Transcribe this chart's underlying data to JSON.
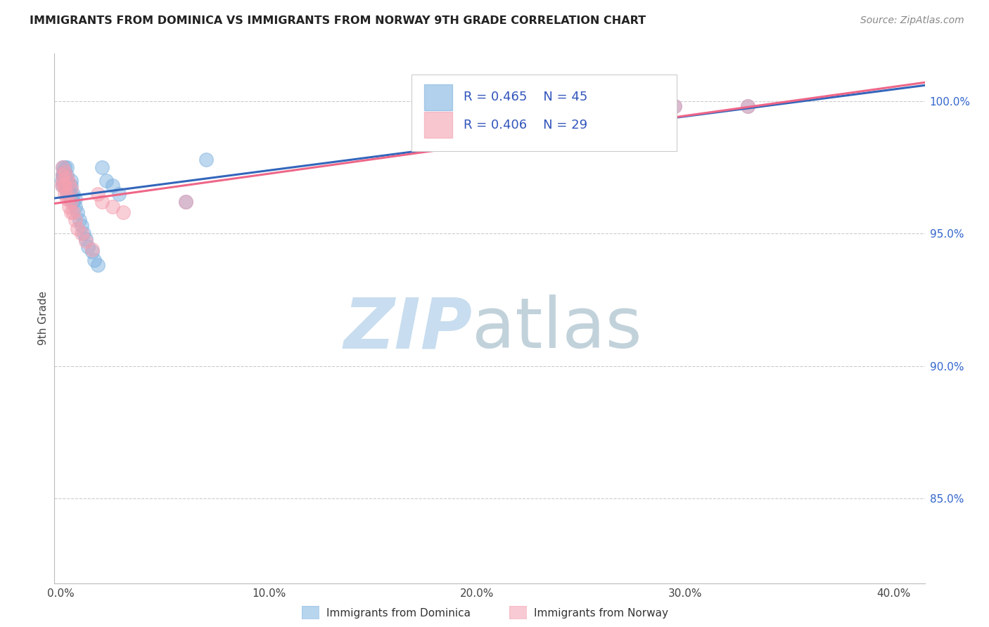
{
  "title": "IMMIGRANTS FROM DOMINICA VS IMMIGRANTS FROM NORWAY 9TH GRADE CORRELATION CHART",
  "source": "Source: ZipAtlas.com",
  "xlabel_tick_vals": [
    0.0,
    0.1,
    0.2,
    0.3,
    0.4
  ],
  "ylabel_tick_vals": [
    0.85,
    0.9,
    0.95,
    1.0
  ],
  "xlim": [
    -0.003,
    0.415
  ],
  "ylim": [
    0.818,
    1.018
  ],
  "ylabel": "9th Grade",
  "legend_dominica": "Immigrants from Dominica",
  "legend_norway": "Immigrants from Norway",
  "R_dominica": 0.465,
  "N_dominica": 45,
  "R_norway": 0.406,
  "N_norway": 29,
  "color_dominica": "#7FB3E0",
  "color_norway": "#F4A0B0",
  "trendline_dominica": "#3366BB",
  "trendline_norway": "#EE6688",
  "dominica_x": [
    0.0005,
    0.0008,
    0.001,
    0.001,
    0.001,
    0.0012,
    0.0015,
    0.0015,
    0.002,
    0.002,
    0.002,
    0.002,
    0.0025,
    0.003,
    0.003,
    0.003,
    0.003,
    0.003,
    0.004,
    0.004,
    0.0045,
    0.005,
    0.005,
    0.005,
    0.006,
    0.006,
    0.007,
    0.007,
    0.008,
    0.009,
    0.01,
    0.011,
    0.012,
    0.013,
    0.015,
    0.016,
    0.018,
    0.02,
    0.022,
    0.025,
    0.028,
    0.06,
    0.07,
    0.295,
    0.33
  ],
  "dominica_y": [
    0.97,
    0.972,
    0.968,
    0.972,
    0.975,
    0.973,
    0.97,
    0.972,
    0.968,
    0.97,
    0.972,
    0.975,
    0.968,
    0.966,
    0.968,
    0.97,
    0.972,
    0.975,
    0.965,
    0.968,
    0.963,
    0.965,
    0.968,
    0.97,
    0.962,
    0.965,
    0.96,
    0.963,
    0.958,
    0.955,
    0.953,
    0.95,
    0.948,
    0.945,
    0.943,
    0.94,
    0.938,
    0.975,
    0.97,
    0.968,
    0.965,
    0.962,
    0.978,
    0.998,
    0.998
  ],
  "norway_x": [
    0.0005,
    0.001,
    0.001,
    0.0015,
    0.002,
    0.002,
    0.003,
    0.003,
    0.004,
    0.005,
    0.005,
    0.006,
    0.007,
    0.008,
    0.01,
    0.012,
    0.015,
    0.018,
    0.02,
    0.025,
    0.03,
    0.06,
    0.295,
    0.33,
    0.001,
    0.002,
    0.003,
    0.004,
    0.005
  ],
  "norway_y": [
    0.968,
    0.97,
    0.972,
    0.968,
    0.965,
    0.968,
    0.963,
    0.965,
    0.96,
    0.958,
    0.962,
    0.958,
    0.955,
    0.952,
    0.95,
    0.947,
    0.944,
    0.965,
    0.962,
    0.96,
    0.958,
    0.962,
    0.998,
    0.998,
    0.975,
    0.973,
    0.971,
    0.969,
    0.967
  ]
}
